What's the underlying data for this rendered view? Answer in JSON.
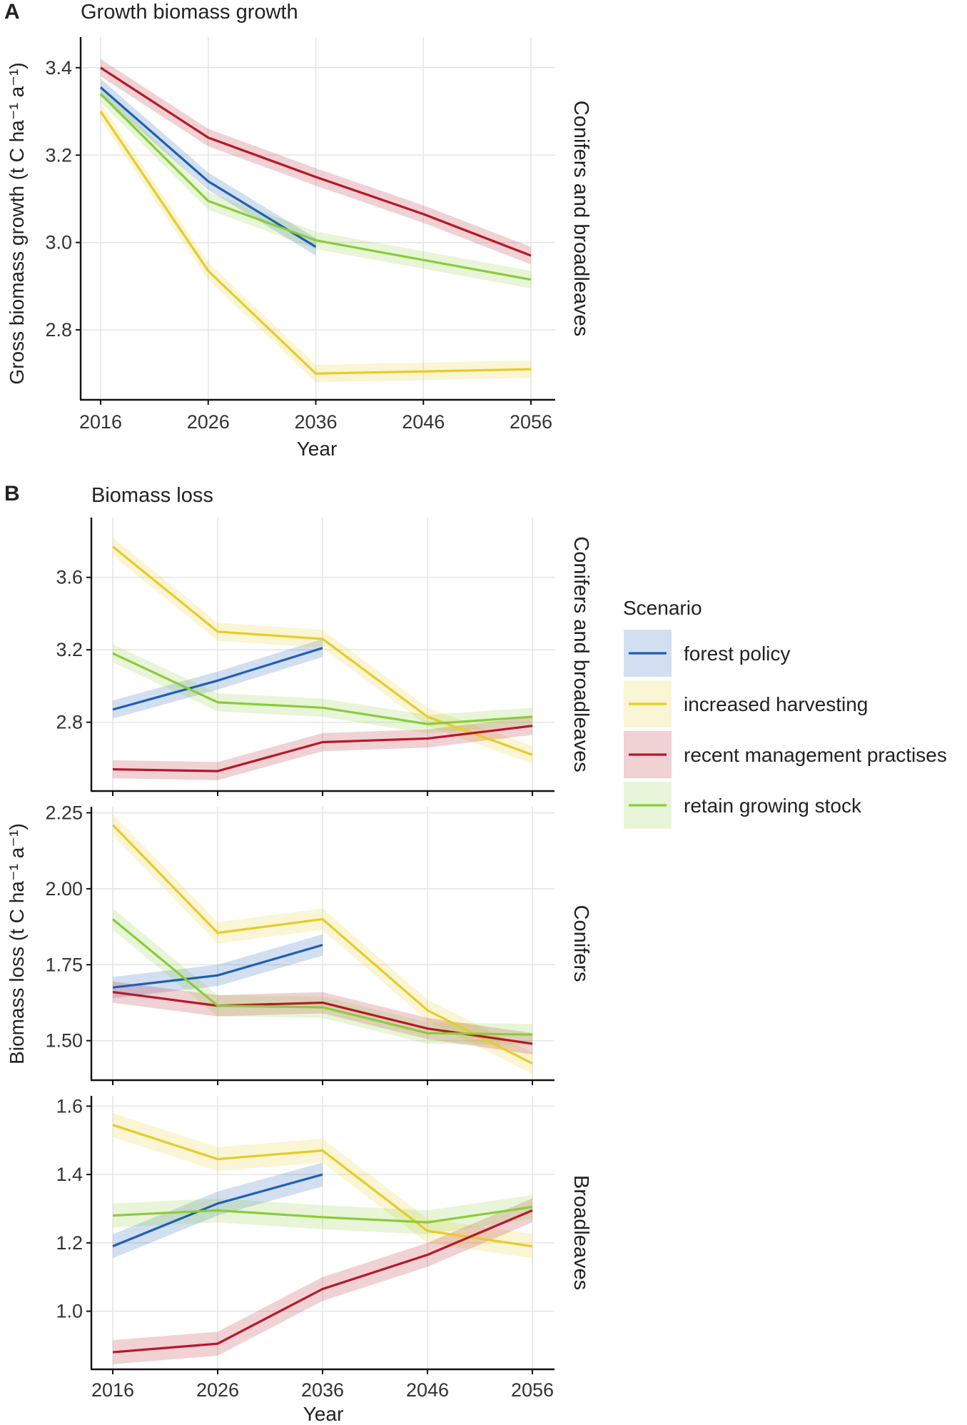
{
  "figure": {
    "panels": [
      {
        "letter": "A",
        "title": "Growth biomass growth"
      },
      {
        "letter": "B",
        "title": "Biomass loss"
      }
    ],
    "ylabel_A": "Gross biomass growth (t C ha",
    "ylabel_A_unit": "⁻¹ a⁻¹)",
    "ylabel_B": "Biomass loss (t C ha",
    "ylabel_B_unit": "⁻¹ a⁻¹)",
    "xlabel": "Year"
  },
  "colors": {
    "forest policy": "#1f5fb4",
    "increased harvesting": "#e6cc2a",
    "recent management practises": "#b5182a",
    "retain growing stock": "#8acc3a"
  },
  "legend": {
    "title": "Scenario",
    "entries": [
      "forest policy",
      "increased harvesting",
      "recent management practises",
      "retain growing stock"
    ]
  },
  "chart_data": [
    {
      "type": "line",
      "id": "A",
      "title": "Growth biomass growth",
      "facet": "Conifers and broadleaves",
      "xlabel": "Year",
      "ylabel": "Gross biomass growth (t C ha⁻¹ a⁻¹)",
      "x": [
        2016,
        2026,
        2036,
        2046,
        2056
      ],
      "xlim": [
        2016,
        2056
      ],
      "ylim": [
        2.64,
        3.47
      ],
      "yticks": [
        2.8,
        3.0,
        3.2,
        3.4
      ],
      "ytick_labels": [
        "2.8",
        "3.0",
        "3.2",
        "3.4"
      ],
      "band": 0.02,
      "series": [
        {
          "name": "forest policy",
          "values": [
            3.355,
            3.14,
            2.99,
            null,
            null
          ]
        },
        {
          "name": "increased harvesting",
          "values": [
            3.3,
            2.935,
            2.7,
            2.705,
            2.71
          ]
        },
        {
          "name": "recent management practises",
          "values": [
            3.4,
            3.24,
            3.15,
            3.065,
            2.97
          ]
        },
        {
          "name": "retain growing stock",
          "values": [
            3.34,
            3.095,
            3.005,
            2.96,
            2.915
          ]
        }
      ]
    },
    {
      "type": "line",
      "id": "B1",
      "title": "Biomass loss",
      "facet": "Conifers and broadleaves",
      "xlabel": "",
      "ylabel": "Biomass loss (t C ha⁻¹ a⁻¹)",
      "x": [
        2016,
        2026,
        2036,
        2046,
        2056
      ],
      "xlim": [
        2016,
        2056
      ],
      "ylim": [
        2.42,
        3.93
      ],
      "yticks": [
        2.8,
        3.2,
        3.6
      ],
      "ytick_labels": [
        "2.8",
        "3.2",
        "3.6"
      ],
      "band": 0.05,
      "series": [
        {
          "name": "forest policy",
          "values": [
            2.87,
            3.03,
            3.21,
            null,
            null
          ]
        },
        {
          "name": "increased harvesting",
          "values": [
            3.77,
            3.3,
            3.26,
            2.83,
            2.62
          ]
        },
        {
          "name": "recent management practises",
          "values": [
            2.54,
            2.53,
            2.69,
            2.71,
            2.78
          ]
        },
        {
          "name": "retain growing stock",
          "values": [
            3.18,
            2.91,
            2.88,
            2.79,
            2.83
          ]
        }
      ]
    },
    {
      "type": "line",
      "id": "B2",
      "title": "",
      "facet": "Conifers",
      "xlabel": "",
      "ylabel": "Biomass loss (t C ha⁻¹ a⁻¹)",
      "x": [
        2016,
        2026,
        2036,
        2046,
        2056
      ],
      "xlim": [
        2016,
        2056
      ],
      "ylim": [
        1.37,
        2.27
      ],
      "yticks": [
        1.5,
        1.75,
        2.0,
        2.25
      ],
      "ytick_labels": [
        "1.50",
        "1.75",
        "2.00",
        "2.25"
      ],
      "band": 0.035,
      "series": [
        {
          "name": "forest policy",
          "values": [
            1.675,
            1.715,
            1.815,
            null,
            null
          ]
        },
        {
          "name": "increased harvesting",
          "values": [
            2.21,
            1.855,
            1.9,
            1.6,
            1.425
          ]
        },
        {
          "name": "recent management practises",
          "values": [
            1.66,
            1.615,
            1.625,
            1.54,
            1.49
          ]
        },
        {
          "name": "retain growing stock",
          "values": [
            1.9,
            1.615,
            1.61,
            1.525,
            1.52
          ]
        }
      ]
    },
    {
      "type": "line",
      "id": "B3",
      "title": "",
      "facet": "Broadleaves",
      "xlabel": "Year",
      "ylabel": "Biomass loss (t C ha⁻¹ a⁻¹)",
      "x": [
        2016,
        2026,
        2036,
        2046,
        2056
      ],
      "xlim": [
        2016,
        2056
      ],
      "xtick_labels": [
        "2016",
        "2026",
        "2036",
        "2046",
        "2056"
      ],
      "ylim": [
        0.83,
        1.63
      ],
      "yticks": [
        1.0,
        1.2,
        1.4,
        1.6
      ],
      "ytick_labels": [
        "1.0",
        "1.2",
        "1.4",
        "1.6"
      ],
      "band": 0.035,
      "series": [
        {
          "name": "forest policy",
          "values": [
            1.19,
            1.315,
            1.4,
            null,
            null
          ]
        },
        {
          "name": "increased harvesting",
          "values": [
            1.545,
            1.445,
            1.47,
            1.235,
            1.19
          ]
        },
        {
          "name": "recent management practises",
          "values": [
            0.88,
            0.905,
            1.065,
            1.165,
            1.295
          ]
        },
        {
          "name": "retain growing stock",
          "values": [
            1.28,
            1.295,
            1.275,
            1.26,
            1.305
          ]
        }
      ]
    }
  ]
}
